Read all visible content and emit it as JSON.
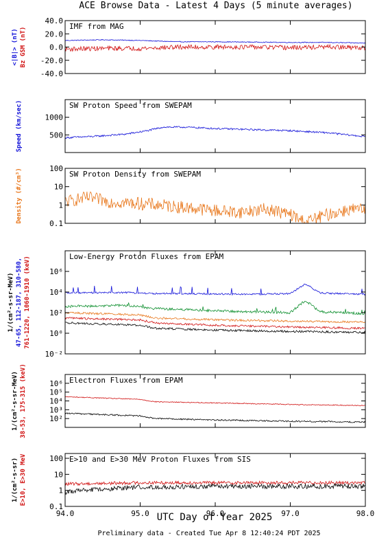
{
  "title": "ACE Browse Data - Latest 4 Days (5 minute averages)",
  "footer": "Preliminary data - Created Tue Apr  8 12:40:24 PDT 2025",
  "colors": {
    "blue": "#1010d8",
    "red": "#d01010",
    "orange": "#e8761a",
    "green": "#109030",
    "black": "#000000"
  },
  "chart_data": [
    {
      "type": "line",
      "title": "IMF from MAG",
      "scale": "linear",
      "ylim": [
        -40,
        40
      ],
      "yticks": [
        "40.0",
        "20.0",
        "0.0",
        "-20.0",
        "-40.0"
      ],
      "ylabel_lines": [
        {
          "text": "<|B|> (nT)",
          "color": "#1010d8"
        },
        {
          "text": "Bz GSM (nT)",
          "color": "#d01010"
        }
      ],
      "series": [
        {
          "color": "#1010d8",
          "day": [
            94.0,
            94.5,
            95.0,
            95.5,
            96.0,
            96.5,
            97.0,
            97.5,
            98.0
          ],
          "value": [
            10,
            11,
            10,
            8,
            8,
            7.5,
            7,
            7,
            6
          ],
          "noise": 0.6,
          "spike": 0
        },
        {
          "color": "#d01010",
          "day": [
            94.0,
            94.5,
            95.0,
            95.5,
            96.0,
            96.5,
            97.0,
            97.5,
            98.0
          ],
          "value": [
            -3,
            -2,
            -2,
            0,
            0,
            0,
            -1,
            0,
            -1
          ],
          "noise": 3.5,
          "spike": 0
        }
      ]
    },
    {
      "type": "line",
      "title": "SW Proton Speed from SWEPAM",
      "scale": "linear",
      "ylim": [
        0,
        1500
      ],
      "yticks": [
        "1000",
        "500"
      ],
      "ylabel_lines": [
        {
          "text": "Speed (km/sec)",
          "color": "#1010d8"
        }
      ],
      "series": [
        {
          "color": "#1010d8",
          "day": [
            94.0,
            94.4,
            94.8,
            95.1,
            95.3,
            95.6,
            96.0,
            96.5,
            97.0,
            97.5,
            98.0
          ],
          "value": [
            420,
            460,
            520,
            620,
            720,
            720,
            680,
            650,
            620,
            560,
            450
          ],
          "noise": 25,
          "spike": 0
        }
      ]
    },
    {
      "type": "line",
      "title": "SW Proton Density from SWEPAM",
      "scale": "log",
      "ylim": [
        0.1,
        100
      ],
      "yticks": [
        "100",
        "10",
        "1",
        "0.1"
      ],
      "ylabel_lines": [
        {
          "text": "Density (#/cm³)",
          "color": "#e8761a"
        }
      ],
      "series": [
        {
          "color": "#e8761a",
          "day": [
            94.0,
            94.3,
            94.6,
            95.0,
            95.5,
            96.0,
            96.3,
            96.7,
            97.0,
            97.2,
            97.5,
            97.8,
            98.0
          ],
          "value": [
            1.5,
            2.5,
            1.5,
            1.2,
            0.8,
            0.5,
            0.4,
            0.6,
            0.3,
            0.12,
            0.3,
            0.6,
            0.5
          ],
          "noise": 0.35,
          "spike": 0
        }
      ]
    },
    {
      "type": "line",
      "title": "Low-Energy Proton Fluxes from EPAM",
      "scale": "log",
      "ylim": [
        0.01,
        100000000
      ],
      "yticks": [
        "10⁶",
        "10⁴",
        "10²",
        "10⁰",
        "10⁻²"
      ],
      "ylabel_lines": [
        {
          "text": "1/(cm²-s-sr-MeV)",
          "color": "#000000"
        },
        {
          "text": "47-65,  112-187,  310-580,",
          "color": "#1010d8"
        },
        {
          "text": "761-1220, 1060-1910 (keV)",
          "color": "#d01010"
        }
      ],
      "series": [
        {
          "color": "#1010d8",
          "day": [
            94.0,
            94.8,
            95.2,
            96.0,
            96.5,
            97.0,
            97.2,
            97.4,
            98.0
          ],
          "value": [
            8000,
            9000,
            7000,
            6500,
            6000,
            7000,
            60000,
            8000,
            6000
          ],
          "noise": 0.08,
          "spike": 0.3
        },
        {
          "color": "#109030",
          "day": [
            94.0,
            94.8,
            95.2,
            96.0,
            96.5,
            97.0,
            97.2,
            97.4,
            98.0
          ],
          "value": [
            400,
            500,
            250,
            150,
            120,
            100,
            1500,
            120,
            80
          ],
          "noise": 0.12,
          "spike": 0.2
        },
        {
          "color": "#e8761a",
          "day": [
            94.0,
            95.0,
            95.2,
            96.0,
            97.0,
            98.0
          ],
          "value": [
            100,
            60,
            30,
            20,
            15,
            12
          ],
          "noise": 0.1,
          "spike": 0
        },
        {
          "color": "#d01010",
          "day": [
            94.0,
            95.0,
            95.2,
            96.0,
            97.0,
            98.0
          ],
          "value": [
            30,
            20,
            10,
            6,
            4,
            3
          ],
          "noise": 0.1,
          "spike": 0
        },
        {
          "color": "#000000",
          "day": [
            94.0,
            95.0,
            95.2,
            96.0,
            97.0,
            98.0
          ],
          "value": [
            10,
            6,
            3,
            2,
            1.5,
            1.2
          ],
          "noise": 0.1,
          "spike": 0
        }
      ]
    },
    {
      "type": "line",
      "title": "Electron Fluxes from EPAM",
      "scale": "log",
      "ylim": [
        10,
        10000000
      ],
      "yticks": [
        "10⁶",
        "10⁵",
        "10⁴",
        "10³",
        "10²"
      ],
      "ylabel_lines": [
        {
          "text": "1/(cm²-s-sr-MeV)",
          "color": "#000000"
        },
        {
          "text": "38-53, 175-315 (keV)",
          "color": "#d01010"
        }
      ],
      "series": [
        {
          "color": "#d01010",
          "day": [
            94.0,
            95.0,
            95.2,
            96.0,
            97.0,
            98.0
          ],
          "value": [
            30000,
            15000,
            8000,
            6000,
            4000,
            3000
          ],
          "noise": 0.05,
          "spike": 0
        },
        {
          "color": "#000000",
          "day": [
            94.0,
            95.0,
            95.2,
            96.0,
            97.0,
            98.0
          ],
          "value": [
            400,
            200,
            100,
            70,
            50,
            40
          ],
          "noise": 0.08,
          "spike": 0
        }
      ]
    },
    {
      "type": "line",
      "title": "E>10 and E>30 MeV Proton Fluxes from SIS",
      "scale": "log",
      "ylim": [
        0.1,
        200
      ],
      "yticks": [
        "100",
        "10",
        "1",
        "0.1"
      ],
      "ylabel_lines": [
        {
          "text": "1/(cm²-s-sr)",
          "color": "#000000"
        },
        {
          "text": "E>10, E>30 MeV",
          "color": "#d01010"
        }
      ],
      "series": [
        {
          "color": "#d01010",
          "day": [
            94.0,
            95.0,
            96.0,
            97.0,
            98.0
          ],
          "value": [
            2.5,
            3,
            3,
            3,
            3
          ],
          "noise": 0.1,
          "spike": 0
        },
        {
          "color": "#000000",
          "day": [
            94.0,
            94.5,
            95.0,
            96.0,
            97.0,
            98.0
          ],
          "value": [
            0.8,
            1.2,
            1.6,
            1.8,
            1.8,
            1.8
          ],
          "noise": 0.15,
          "spike": 0
        }
      ]
    }
  ],
  "xaxis": {
    "label": "UTC Day of Year 2025",
    "ticks": [
      {
        "day": 94.0,
        "label": "94.0"
      },
      {
        "day": 95.0,
        "label": "95.0"
      },
      {
        "day": 96.0,
        "label": "96.0"
      },
      {
        "day": 97.0,
        "label": "97.0"
      },
      {
        "day": 98.0,
        "label": "98.0"
      }
    ],
    "range": [
      94.0,
      98.0
    ]
  }
}
